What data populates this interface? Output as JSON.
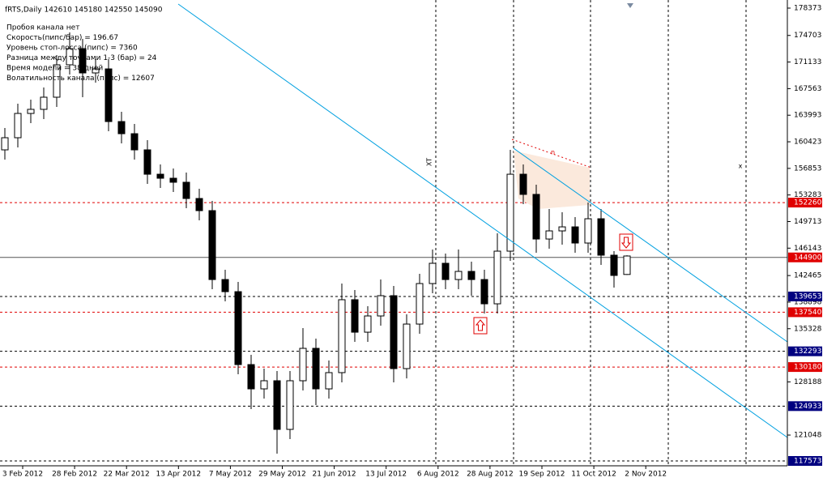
{
  "chart_data": {
    "type": "candlestick",
    "header": "fRTS,Daily  142610 145180 142550 145090",
    "info_lines": [
      "Пробоя канала нет",
      "Скорость(пипс/бар) = 196.67",
      "Уровень стоп-лосса (пипс) = 7360",
      "Разница между точками 1-3 (бар) = 24",
      "Время модели = 38 дней",
      "Волатильность канала (пипс) = 12607"
    ],
    "annotations": [
      "XT",
      "x",
      "n"
    ],
    "x_labels": [
      "3 Feb 2012",
      "28 Feb 2012",
      "22 Mar 2012",
      "13 Apr 2012",
      "7 May 2012",
      "29 May 2012",
      "21 Jun 2012",
      "13 Jul 2012",
      "6 Aug 2012",
      "28 Aug 2012",
      "19 Sep 2012",
      "11 Oct 2012",
      "2 Nov 2012"
    ],
    "ylim": [
      116920,
      179461
    ],
    "yticks": [
      178373,
      174703,
      171133,
      167563,
      163993,
      160423,
      156853,
      153283,
      149713,
      146143,
      142465,
      138898,
      135328,
      128188,
      121048
    ],
    "up_color": "#ffffff",
    "down_color": "#000000",
    "levels": [
      {
        "value": 152260,
        "color": "#e00000"
      },
      {
        "value": 144900,
        "color": "#e00000"
      },
      {
        "value": 139653,
        "color": "#000080"
      },
      {
        "value": 137540,
        "color": "#e00000"
      },
      {
        "value": 132293,
        "color": "#000080"
      },
      {
        "value": 130180,
        "color": "#e00000"
      },
      {
        "value": 124933,
        "color": "#000080"
      },
      {
        "value": 117573,
        "color": "#000080"
      }
    ],
    "open": [
      159340,
      160970,
      164230,
      164780,
      166410,
      170760,
      172930,
      169670,
      170210,
      163140,
      161510,
      159340,
      156070,
      155530,
      154990,
      152810,
      151180,
      141930,
      140300,
      130510,
      127250,
      128340,
      121810,
      128340,
      132690,
      127250,
      129430,
      139220,
      134860,
      137040,
      139760,
      129970,
      135950,
      141390,
      144110,
      141930,
      143020,
      141930,
      138670,
      145740,
      156070,
      153360,
      147370,
      148460,
      149000,
      146830,
      150090,
      145200,
      142610
    ],
    "high": [
      162270,
      165540,
      166080,
      167710,
      172060,
      175110,
      174240,
      171520,
      171520,
      164450,
      162820,
      160640,
      157380,
      156840,
      156290,
      154120,
      152490,
      143240,
      141610,
      131820,
      129970,
      129640,
      129640,
      135410,
      133990,
      131060,
      141390,
      140520,
      138350,
      141930,
      141060,
      137260,
      142700,
      145960,
      145420,
      145960,
      144330,
      143240,
      148130,
      159340,
      157380,
      154660,
      151400,
      150960,
      150310,
      152270,
      151400,
      145740,
      145180
    ],
    "low": [
      158030,
      159660,
      162930,
      163470,
      165100,
      169450,
      166410,
      168370,
      161840,
      160210,
      158030,
      154770,
      154230,
      153680,
      151510,
      149880,
      140630,
      139000,
      129210,
      124530,
      125950,
      118550,
      120510,
      127030,
      125080,
      125950,
      128120,
      133560,
      133560,
      135730,
      128120,
      128660,
      134650,
      140090,
      140630,
      140630,
      139760,
      137370,
      137370,
      144440,
      152050,
      145520,
      146070,
      146610,
      145520,
      145520,
      143890,
      140850,
      142550
    ],
    "close": [
      160970,
      164230,
      164780,
      166410,
      170760,
      172930,
      169670,
      170210,
      163140,
      161510,
      159340,
      156070,
      155530,
      154990,
      152810,
      151180,
      141930,
      140300,
      130510,
      127250,
      128340,
      121810,
      128340,
      132690,
      127250,
      129430,
      139220,
      134860,
      137040,
      139760,
      129970,
      135950,
      141390,
      144110,
      141930,
      143020,
      141930,
      138670,
      145740,
      156070,
      153360,
      147370,
      148460,
      149000,
      146830,
      150090,
      145200,
      142480,
      145090
    ]
  }
}
